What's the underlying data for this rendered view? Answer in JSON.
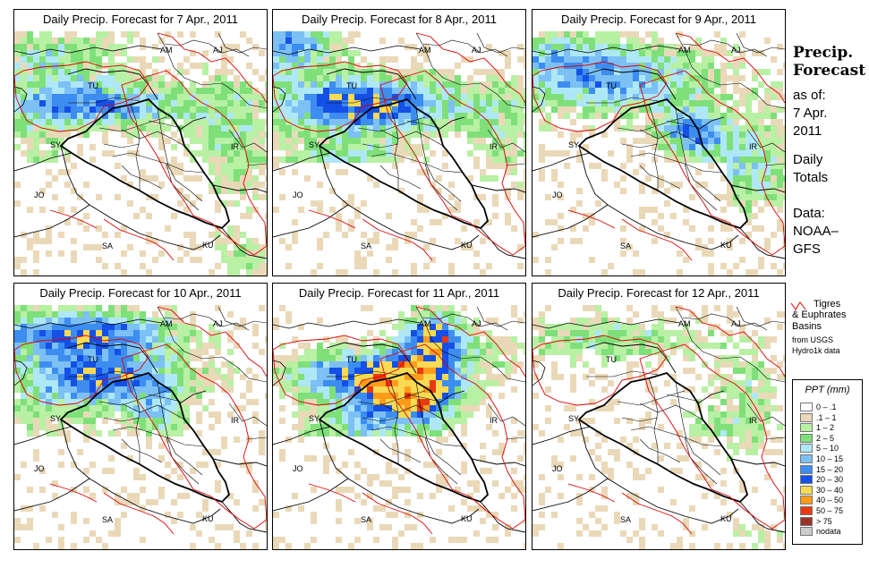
{
  "panels": [
    {
      "title": "Daily Precip. Forecast for  7 Apr., 2011",
      "day": 7
    },
    {
      "title": "Daily Precip. Forecast for  8 Apr., 2011",
      "day": 8
    },
    {
      "title": "Daily Precip. Forecast for  9 Apr., 2011",
      "day": 9
    },
    {
      "title": "Daily Precip. Forecast for  10 Apr., 2011",
      "day": 10
    },
    {
      "title": "Daily Precip. Forecast for  11 Apr., 2011",
      "day": 11
    },
    {
      "title": "Daily Precip. Forecast for  12 Apr., 2011",
      "day": 12
    }
  ],
  "country_labels": [
    "AM",
    "AJ",
    "TU",
    "SY",
    "IR",
    "JO",
    "SA",
    "KU"
  ],
  "sidebar": {
    "heading_line1": "Precip.",
    "heading_line2": "Forecast",
    "asof_label": "as of:",
    "asof_date_line1": "7 Apr.",
    "asof_date_line2": "2011",
    "totals_line1": "Daily",
    "totals_line2": "Totals",
    "data_line1": "Data:",
    "data_line2": "NOAA–",
    "data_line3": "GFS"
  },
  "basin_legend": {
    "line1": "Tigres",
    "line2": "& Euphrates",
    "line3": "Basins",
    "line4": "from USGS",
    "line5": "Hydro1k data",
    "line_color": "#dd0000"
  },
  "ppt_legend": {
    "title": "PPT (mm)",
    "items": [
      {
        "label": "0 – .1",
        "color": "#ffffff"
      },
      {
        "label": ".1 – 1",
        "color": "#ead9b8"
      },
      {
        "label": "1 – 2",
        "color": "#b8f0a4"
      },
      {
        "label": "2 – 5",
        "color": "#7fe07a"
      },
      {
        "label": "5 – 10",
        "color": "#aee8f6"
      },
      {
        "label": "10 – 15",
        "color": "#7cc0f4"
      },
      {
        "label": "15 – 20",
        "color": "#3d8df0"
      },
      {
        "label": "20 – 30",
        "color": "#1550e6"
      },
      {
        "label": "30 – 40",
        "color": "#f8da54"
      },
      {
        "label": "40 – 50",
        "color": "#ff9d1a"
      },
      {
        "label": "50 – 75",
        "color": "#e83a10"
      },
      {
        "label": "> 75",
        "color": "#9a3327"
      },
      {
        "label": "nodata",
        "color": "#cccccc"
      }
    ]
  }
}
